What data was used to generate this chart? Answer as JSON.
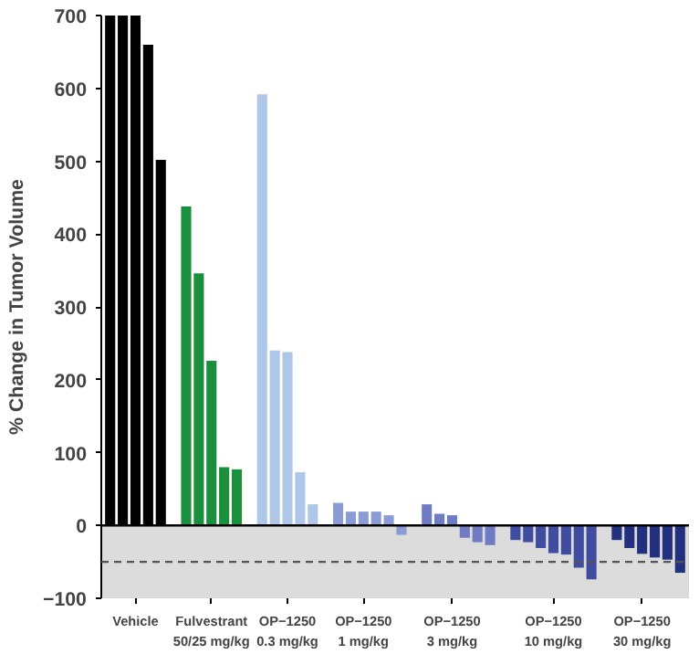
{
  "chart_data": {
    "type": "bar",
    "ylabel": "% Change in Tumor Volume",
    "categories": [
      null,
      null,
      "Vehicle",
      null,
      null,
      null,
      null,
      null,
      "Fulvestrant\n50/25 mg/kg",
      null,
      null,
      null,
      null,
      null,
      "OP−1250\n0.3 mg/kg",
      null,
      null,
      null,
      null,
      null,
      "OP−1250\n1 mg/kg",
      null,
      null,
      null,
      null,
      null,
      null,
      "OP−1250\n3 mg/kg",
      null,
      null,
      null,
      null,
      null,
      null,
      null,
      "OP−1250\n10 mg/kg",
      null,
      null,
      null,
      null,
      null,
      null,
      "OP−1250\n30 mg/kg",
      null,
      null,
      null
    ],
    "values": [
      700,
      700,
      700,
      660,
      502,
      null,
      438,
      346,
      226,
      80,
      77,
      null,
      592,
      240,
      238,
      73,
      29,
      null,
      31,
      19,
      19,
      19,
      14,
      -13,
      null,
      29,
      16,
      14,
      -17,
      -23,
      -27,
      null,
      -20,
      -23,
      -31,
      -38,
      -40,
      -58,
      -74,
      null,
      -20,
      -31,
      -39,
      -44,
      -47,
      -65
    ],
    "colors": [
      "#000000",
      "#000000",
      "#000000",
      "#000000",
      "#000000",
      null,
      "#1a8f3c",
      "#1a8f3c",
      "#1a8f3c",
      "#1a8f3c",
      "#1a8f3c",
      null,
      "#aec6e8",
      "#aec6e8",
      "#aec6e8",
      "#aec6e8",
      "#aec6e8",
      null,
      "#8b9bd6",
      "#8b9bd6",
      "#8b9bd6",
      "#8b9bd6",
      "#8b9bd6",
      "#8b9bd6",
      null,
      "#6f7cc4",
      "#6f7cc4",
      "#6f7cc4",
      "#6f7cc4",
      "#6f7cc4",
      "#6f7cc4",
      null,
      "#3f4ca0",
      "#3f4ca0",
      "#3f4ca0",
      "#3f4ca0",
      "#3f4ca0",
      "#3f4ca0",
      "#3f4ca0",
      null,
      "#23307f",
      "#23307f",
      "#23307f",
      "#23307f",
      "#23307f",
      "#23307f"
    ],
    "ylim": [
      -100,
      700
    ],
    "yticks": [
      -100,
      0,
      100,
      200,
      300,
      400,
      500,
      600,
      700
    ],
    "bands": [
      {
        "axis": "y",
        "from": -100,
        "to": 0,
        "color": "#dcdcdc"
      }
    ],
    "ref_lines": [
      {
        "axis": "y",
        "value": 0,
        "color": "#000000",
        "line_style": "solid"
      },
      {
        "axis": "y",
        "value": -50,
        "color": "#555555",
        "line_style": "dashed"
      }
    ],
    "grid": false
  }
}
